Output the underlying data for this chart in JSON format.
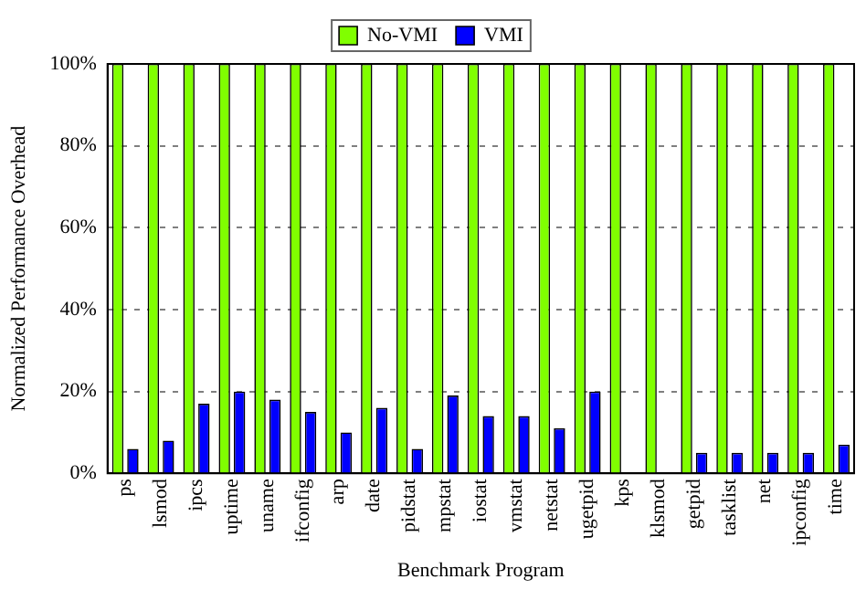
{
  "chart_data": {
    "type": "bar",
    "xlabel": "Benchmark Program",
    "ylabel": "Normalized Performance Overhead",
    "categories": [
      "ps",
      "lsmod",
      "ipcs",
      "uptime",
      "uname",
      "ifconfig",
      "arp",
      "date",
      "pidstat",
      "mpstat",
      "iostat",
      "vmstat",
      "netstat",
      "ugetpid",
      "kps",
      "klsmod",
      "getpid",
      "tasklist",
      "net",
      "ipconfig",
      "time"
    ],
    "series": [
      {
        "name": "No-VMI",
        "color": "#80ff00",
        "values": [
          100,
          100,
          100,
          100,
          100,
          100,
          100,
          100,
          100,
          100,
          100,
          100,
          100,
          100,
          100,
          100,
          100,
          100,
          100,
          100,
          100
        ]
      },
      {
        "name": "VMI",
        "color": "#0000ff",
        "values": [
          6,
          8,
          17,
          20,
          18,
          15,
          10,
          16,
          6,
          19,
          14,
          14,
          11,
          20,
          0,
          0,
          5,
          5,
          5,
          5,
          7
        ]
      }
    ],
    "ylim": [
      0,
      100
    ],
    "yticks": [
      {
        "value": 0,
        "label": "0%"
      },
      {
        "value": 20,
        "label": "20%"
      },
      {
        "value": 40,
        "label": "40%"
      },
      {
        "value": 60,
        "label": "60%"
      },
      {
        "value": 80,
        "label": "80%"
      },
      {
        "value": 100,
        "label": "100%"
      }
    ],
    "grid": "y",
    "legend": "top"
  }
}
